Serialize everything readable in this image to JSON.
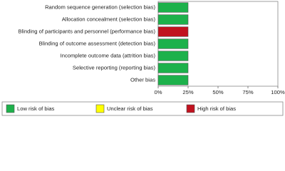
{
  "chart_data": {
    "type": "stacked-barh",
    "categories": [
      "Random sequence generation (selection bias)",
      "Allocation concealment (selection bias)",
      "Blinding of participants and personnel (performance bias)",
      "Blinding of outcome assessment (detection bias)",
      "Incomplete outcome data (attrition bias)",
      "Selective reporting (reporting bias)",
      "Other bias"
    ],
    "series": [
      {
        "name": "Low risk of bias",
        "color": "#1db14b",
        "values": [
          25,
          25,
          0,
          25,
          25,
          25,
          25
        ]
      },
      {
        "name": "Unclear risk of bias",
        "color": "#ffff00",
        "values": [
          0,
          0,
          0,
          0,
          0,
          0,
          0
        ]
      },
      {
        "name": "High risk of bias",
        "color": "#c1121f",
        "values": [
          0,
          0,
          25,
          0,
          0,
          0,
          0
        ]
      }
    ],
    "xlim": [
      0,
      100
    ],
    "xticks": [
      {
        "value": 0,
        "label": "0%"
      },
      {
        "value": 25,
        "label": "25%"
      },
      {
        "value": 50,
        "label": "50%"
      },
      {
        "value": 75,
        "label": "75%"
      },
      {
        "value": 100,
        "label": "100%"
      }
    ],
    "legend": "bottom"
  }
}
